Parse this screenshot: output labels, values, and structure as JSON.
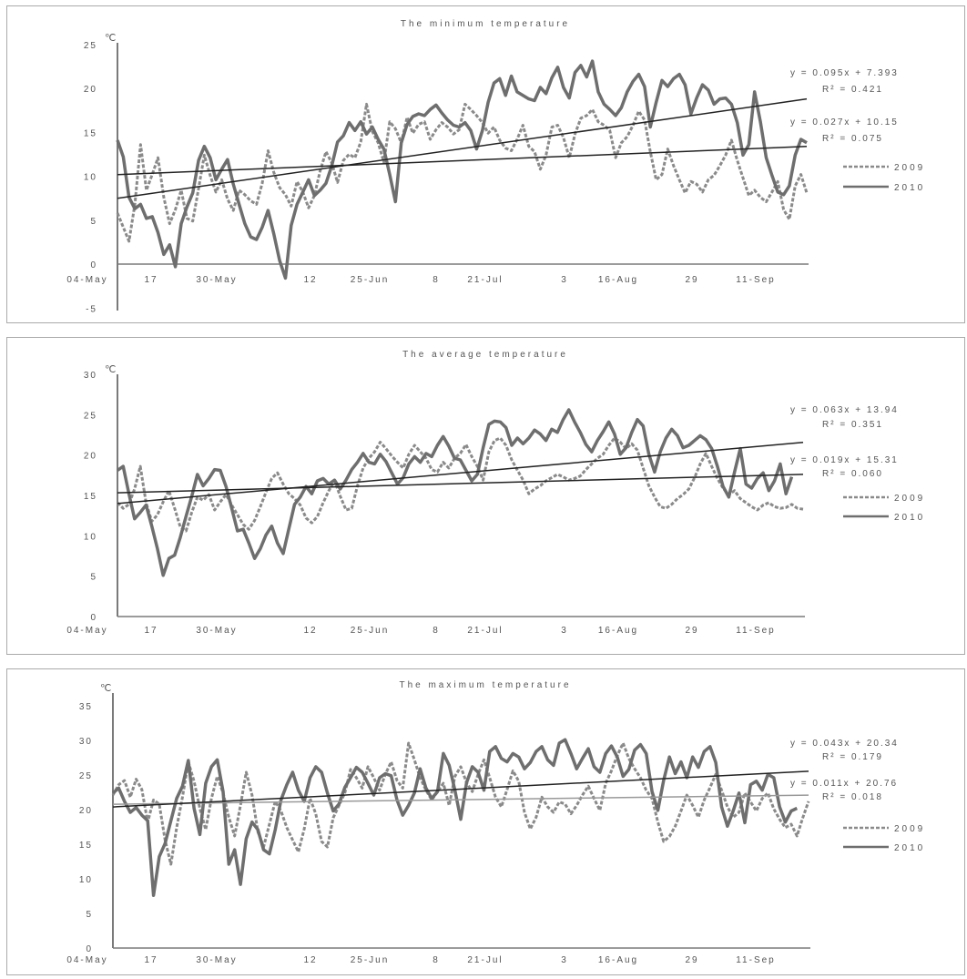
{
  "chart_data": [
    {
      "type": "line",
      "title": "The minimum temperature",
      "unit_label": "℃",
      "y_ticks": [
        "25",
        "20",
        "15",
        "10",
        "5",
        "0",
        "-5"
      ],
      "ylim": [
        -5,
        25
      ],
      "x_tick_labels": [
        "04-May",
        "17",
        "30-May",
        "12",
        "25-Jun",
        "8",
        "21-Jul",
        "3",
        "16-Aug",
        "29",
        "11-Sep"
      ],
      "x_start": "2010-05-04",
      "x_end": "2010-09-21",
      "grid": false,
      "legend_placement": "right",
      "series": [
        {
          "name": "2009",
          "style": "dashed",
          "color": "#8a8a8a",
          "values": [
            5.8,
            4.2,
            2.6,
            6.8,
            13.6,
            8.4,
            10.2,
            12.1,
            7.6,
            4.6,
            6.2,
            8.4,
            5.2,
            4.9,
            8.6,
            12.4,
            10.1,
            8.2,
            9.6,
            7.4,
            6.1,
            8.4,
            7.9,
            7.2,
            6.8,
            9.2,
            12.9,
            10.4,
            8.7,
            7.9,
            6.6,
            9.4,
            8.2,
            6.4,
            7.8,
            10.6,
            12.8,
            11.5,
            9.3,
            11.8,
            12.5,
            12.1,
            13.9,
            18.2,
            15.1,
            13.8,
            11.6,
            16.2,
            15.4,
            13.8,
            16.7,
            14.9,
            15.9,
            16.2,
            14.2,
            15.3,
            16.1,
            15.6,
            14.8,
            15.3,
            18.2,
            17.6,
            16.9,
            16.1,
            14.9,
            15.6,
            14.1,
            13.2,
            12.9,
            14.2,
            15.8,
            13.4,
            12.8,
            10.8,
            12.4,
            15.6,
            15.8,
            14.4,
            12.1,
            14.8,
            16.6,
            16.9,
            17.6,
            16.2,
            15.8,
            15.2,
            12.1,
            13.8,
            14.5,
            15.8,
            17.4,
            16.4,
            12.8,
            9.6,
            10.2,
            13.1,
            11.2,
            9.6,
            8.1,
            9.4,
            9.1,
            8.2,
            9.6,
            10.1,
            11.2,
            12.4,
            14.1,
            11.8,
            9.8,
            7.8,
            8.4,
            7.6,
            7.1,
            8.2,
            9.4,
            6.2,
            5.1,
            8.9,
            10.2,
            8.1
          ]
        },
        {
          "name": "2010",
          "style": "solid",
          "color": "#6e6e6e",
          "values": [
            14.1,
            12.2,
            7.6,
            6.3,
            6.8,
            5.2,
            5.4,
            3.6,
            1.1,
            2.2,
            -0.3,
            4.6,
            6.5,
            8.1,
            11.8,
            13.4,
            12.1,
            9.6,
            10.8,
            11.9,
            9.1,
            6.8,
            4.6,
            3.1,
            2.8,
            4.2,
            6.1,
            3.4,
            0.4,
            -1.6,
            4.4,
            6.8,
            8.2,
            9.6,
            7.8,
            8.4,
            9.2,
            11.2,
            13.9,
            14.6,
            16.1,
            15.2,
            16.2,
            14.8,
            15.6,
            14.2,
            13.1,
            10.2,
            7.1,
            13.8,
            15.9,
            16.8,
            17.1,
            16.9,
            17.6,
            18.1,
            17.2,
            16.4,
            15.8,
            15.6,
            16.1,
            15.2,
            13.1,
            15.2,
            18.4,
            20.6,
            21.1,
            19.2,
            21.4,
            19.6,
            19.2,
            18.8,
            18.6,
            20.1,
            19.4,
            21.2,
            22.4,
            20.1,
            18.9,
            21.8,
            22.6,
            21.3,
            23.1,
            19.6,
            18.2,
            17.6,
            16.9,
            17.8,
            19.6,
            20.8,
            21.6,
            20.2,
            15.6,
            18.4,
            20.9,
            20.2,
            21.1,
            21.6,
            20.4,
            17.1,
            18.9,
            20.4,
            19.8,
            18.2,
            18.8,
            18.9,
            18.2,
            16.1,
            12.4,
            13.6,
            19.6,
            16.2,
            12.1,
            10.1,
            8.2,
            7.9,
            8.9,
            12.4,
            14.2,
            13.8
          ]
        }
      ],
      "trendlines": [
        {
          "series": "2009",
          "slope": 0.027,
          "intercept": 10.15,
          "equation": "y = 0.027x + 10.15",
          "r2": "R² = 0.075"
        },
        {
          "series": "2010",
          "slope": 0.095,
          "intercept": 7.393,
          "equation": "y = 0.095x + 7.393",
          "r2": "R² = 0.421"
        }
      ]
    },
    {
      "type": "line",
      "title": "The average temperature",
      "unit_label": "℃",
      "y_ticks": [
        "30",
        "25",
        "20",
        "15",
        "10",
        "5",
        "0"
      ],
      "ylim": [
        0,
        30
      ],
      "x_tick_labels": [
        "04-May",
        "17",
        "30-May",
        "12",
        "25-Jun",
        "8",
        "21-Jul",
        "3",
        "16-Aug",
        "29",
        "11-Sep"
      ],
      "x_start": "2010-05-04",
      "x_end": "2010-09-22",
      "grid": false,
      "legend_placement": "right",
      "series": [
        {
          "name": "2009",
          "style": "dashed",
          "color": "#8a8a8a",
          "values": [
            14.1,
            13.4,
            13.9,
            15.8,
            18.6,
            14.1,
            11.8,
            12.6,
            14.2,
            15.6,
            13.4,
            11.1,
            10.6,
            12.9,
            14.8,
            14.4,
            15.1,
            13.2,
            14.2,
            15.1,
            13.8,
            12.6,
            11.4,
            10.8,
            11.9,
            13.6,
            15.4,
            17.1,
            17.8,
            16.4,
            15.2,
            14.6,
            13.8,
            12.2,
            11.6,
            12.4,
            14.1,
            15.6,
            16.8,
            14.9,
            13.2,
            13.4,
            16.2,
            18.4,
            19.6,
            20.4,
            21.6,
            20.8,
            19.9,
            19.1,
            18.4,
            20.1,
            21.2,
            20.4,
            19.6,
            18.2,
            17.9,
            19.1,
            18.4,
            19.6,
            20.2,
            21.3,
            19.8,
            18.6,
            16.9,
            20.4,
            21.8,
            22.1,
            21.2,
            19.4,
            18.1,
            16.9,
            15.2,
            15.8,
            16.2,
            16.8,
            17.2,
            17.6,
            17.3,
            16.9,
            17.1,
            17.4,
            18.2,
            18.9,
            19.6,
            20.1,
            21.2,
            22.1,
            21.6,
            20.8,
            21.4,
            20.6,
            18.4,
            16.2,
            14.8,
            13.6,
            13.4,
            13.9,
            14.6,
            15.1,
            15.8,
            17.2,
            18.9,
            20.2,
            18.6,
            17.1,
            15.9,
            15.1,
            15.6,
            14.6,
            14.1,
            13.6,
            13.2,
            13.8,
            14.1,
            13.6,
            13.4,
            13.5,
            13.9,
            13.4,
            13.3
          ]
        },
        {
          "name": "2010",
          "style": "solid",
          "color": "#6e6e6e",
          "values": [
            18.1,
            18.6,
            15.2,
            12.1,
            12.9,
            13.8,
            11.2,
            8.4,
            5.1,
            7.2,
            7.6,
            9.8,
            12.4,
            14.9,
            17.6,
            16.2,
            17.1,
            18.2,
            18.1,
            16.1,
            13.4,
            10.6,
            10.8,
            9.1,
            7.2,
            8.4,
            10.1,
            11.2,
            9.1,
            7.8,
            10.9,
            13.9,
            14.8,
            16.1,
            15.2,
            16.8,
            17.1,
            16.4,
            16.9,
            15.8,
            16.9,
            18.2,
            19.1,
            20.2,
            19.1,
            18.9,
            20.1,
            19.2,
            17.8,
            16.4,
            17.2,
            18.9,
            19.8,
            19.1,
            20.2,
            19.8,
            21.2,
            22.3,
            21.1,
            19.6,
            19.4,
            18.1,
            16.8,
            17.6,
            20.9,
            23.8,
            24.2,
            24.1,
            23.4,
            21.2,
            22.1,
            21.4,
            22.1,
            23.1,
            22.6,
            21.8,
            23.2,
            22.8,
            24.4,
            25.6,
            24.1,
            22.8,
            21.3,
            20.4,
            21.8,
            22.9,
            24.1,
            22.6,
            20.1,
            20.9,
            22.8,
            24.4,
            23.6,
            20.1,
            17.9,
            20.4,
            22.1,
            23.2,
            22.4,
            20.9,
            21.2,
            21.8,
            22.4,
            21.9,
            20.8,
            18.6,
            16.1,
            14.8,
            17.9,
            20.8,
            16.4,
            15.9,
            17.1,
            17.8,
            15.6,
            16.8,
            18.9,
            15.2,
            17.3
          ]
        }
      ],
      "trendlines": [
        {
          "series": "2009",
          "slope": 0.019,
          "intercept": 15.31,
          "equation": "y = 0.019x + 15.31",
          "r2": "R² = 0.060"
        },
        {
          "series": "2010",
          "slope": 0.063,
          "intercept": 13.94,
          "equation": "y = 0.063x + 13.94",
          "r2": "R² = 0.351"
        }
      ]
    },
    {
      "type": "line",
      "title": "The maximum temperature",
      "unit_label": "℃",
      "y_ticks": [
        "35",
        "30",
        "25",
        "20",
        "15",
        "10",
        "5",
        "0"
      ],
      "ylim": [
        0,
        35
      ],
      "x_tick_labels": [
        "04-May",
        "17",
        "30-May",
        "12",
        "25-Jun",
        "8",
        "21-Jul",
        "3",
        "16-Aug",
        "29",
        "11-Sep"
      ],
      "x_start": "2010-05-04",
      "x_end": "2010-09-22",
      "grid": false,
      "legend_placement": "right",
      "series": [
        {
          "name": "2009",
          "style": "dashed",
          "color": "#8a8a8a",
          "values": [
            22.1,
            23.6,
            24.2,
            21.8,
            24.4,
            22.9,
            18.2,
            21.4,
            20.8,
            15.6,
            12.1,
            17.4,
            21.8,
            26.9,
            24.1,
            20.2,
            17.1,
            21.6,
            24.8,
            22.4,
            18.9,
            16.2,
            20.6,
            25.4,
            22.1,
            16.8,
            14.6,
            17.9,
            21.2,
            19.8,
            17.4,
            15.6,
            13.9,
            17.2,
            21.6,
            19.4,
            15.4,
            14.6,
            18.8,
            20.6,
            22.4,
            25.8,
            24.6,
            23.1,
            26.2,
            24.6,
            22.8,
            25.1,
            26.9,
            24.2,
            23.1,
            29.6,
            27.2,
            24.6,
            22.8,
            21.4,
            22.6,
            23.8,
            20.6,
            24.8,
            26.2,
            23.9,
            22.6,
            25.1,
            27.2,
            24.6,
            21.8,
            20.4,
            22.9,
            25.6,
            24.1,
            19.6,
            17.2,
            18.9,
            21.8,
            20.4,
            19.6,
            21.1,
            20.8,
            19.4,
            20.6,
            22.1,
            23.4,
            21.6,
            19.9,
            23.8,
            25.6,
            27.8,
            29.6,
            27.4,
            25.9,
            24.6,
            22.8,
            21.6,
            18.2,
            15.4,
            16.1,
            17.6,
            19.8,
            22.1,
            20.6,
            18.9,
            21.4,
            23.2,
            25.1,
            22.8,
            20.4,
            18.9,
            19.6,
            22.4,
            21.1,
            19.8,
            21.6,
            22.4,
            20.1,
            18.6,
            17.4,
            17.9,
            16.2,
            18.8,
            21.2
          ]
        },
        {
          "name": "2010",
          "style": "solid",
          "color": "#6e6e6e",
          "values": [
            22.4,
            23.1,
            21.2,
            19.6,
            20.3,
            19.2,
            18.4,
            7.6,
            13.2,
            15.1,
            18.4,
            21.6,
            23.4,
            27.1,
            20.2,
            16.4,
            23.8,
            26.2,
            27.2,
            22.6,
            12.1,
            14.2,
            9.2,
            15.8,
            18.2,
            17.1,
            14.2,
            13.6,
            17.1,
            21.4,
            23.6,
            25.4,
            22.8,
            21.2,
            24.6,
            26.2,
            25.4,
            22.4,
            19.8,
            20.8,
            23.2,
            24.6,
            26.1,
            25.4,
            23.8,
            22.1,
            24.6,
            25.2,
            24.9,
            21.4,
            19.2,
            20.6,
            22.4,
            25.9,
            23.1,
            21.6,
            22.6,
            28.1,
            26.4,
            22.8,
            18.6,
            23.9,
            26.2,
            25.4,
            22.8,
            28.4,
            29.1,
            27.4,
            26.9,
            28.1,
            27.6,
            25.9,
            26.8,
            28.4,
            29.1,
            27.2,
            26.4,
            29.6,
            30.1,
            28.1,
            25.9,
            27.4,
            28.8,
            26.2,
            25.4,
            28.1,
            29.2,
            27.6,
            24.8,
            25.8,
            28.6,
            29.4,
            28.1,
            22.6,
            19.9,
            24.2,
            27.6,
            25.2,
            26.9,
            24.6,
            27.6,
            26.1,
            28.4,
            29.1,
            26.8,
            20.4,
            17.6,
            19.8,
            22.4,
            18.1,
            23.6,
            24.1,
            22.8,
            25.1,
            24.6,
            20.4,
            18.2,
            19.8,
            20.2
          ]
        }
      ],
      "trendlines": [
        {
          "series": "2009",
          "slope": 0.011,
          "intercept": 20.76,
          "equation": "y = 0.011x + 20.76",
          "r2": "R² = 0.018"
        },
        {
          "series": "2010",
          "slope": 0.043,
          "intercept": 20.34,
          "equation": "y = 0.043x + 20.34",
          "r2": "R² = 0.179"
        }
      ]
    }
  ]
}
